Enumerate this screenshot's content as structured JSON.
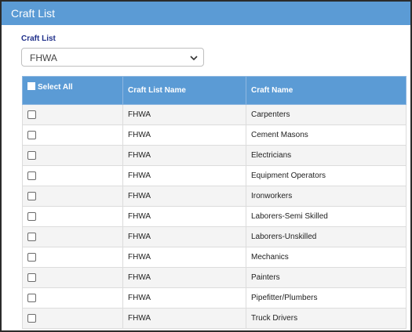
{
  "header": {
    "title": "Craft List"
  },
  "filter": {
    "label": "Craft List",
    "selected": "FHWA"
  },
  "table": {
    "columns": {
      "select_all": "Select All",
      "craft_list_name": "Craft List Name",
      "craft_name": "Craft Name"
    },
    "rows": [
      {
        "list": "FHWA",
        "craft": "Carpenters"
      },
      {
        "list": "FHWA",
        "craft": "Cement Masons"
      },
      {
        "list": "FHWA",
        "craft": "Electricians"
      },
      {
        "list": "FHWA",
        "craft": "Equipment Operators"
      },
      {
        "list": "FHWA",
        "craft": "Ironworkers"
      },
      {
        "list": "FHWA",
        "craft": "Laborers-Semi Skilled"
      },
      {
        "list": "FHWA",
        "craft": "Laborers-Unskilled"
      },
      {
        "list": "FHWA",
        "craft": "Mechanics"
      },
      {
        "list": "FHWA",
        "craft": "Painters"
      },
      {
        "list": "FHWA",
        "craft": "Pipefitter/Plumbers"
      },
      {
        "list": "FHWA",
        "craft": "Truck Drivers"
      }
    ]
  },
  "colors": {
    "header_bg": "#5b9bd5",
    "label_blue": "#1f2f8a",
    "row_alt": "#f4f4f4"
  },
  "icons": {
    "dropdown": "chevron-down-icon",
    "checkbox": "checkbox-icon"
  }
}
